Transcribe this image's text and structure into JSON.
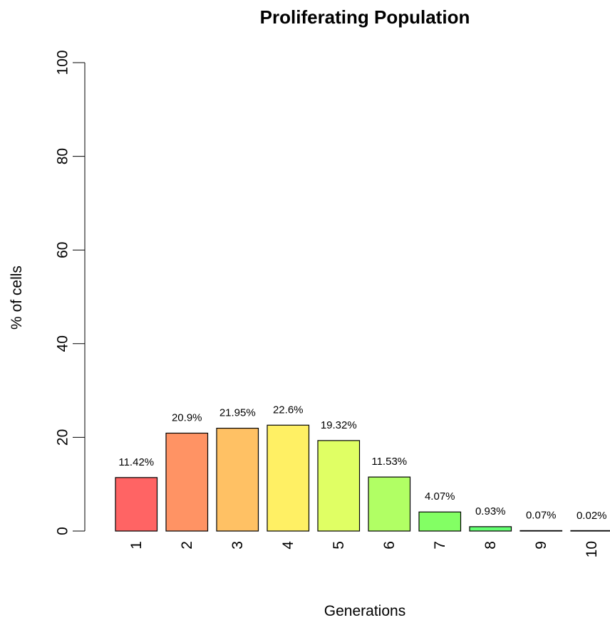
{
  "chart_data": {
    "type": "bar",
    "title": "Proliferating Population",
    "xlabel": "Generations",
    "ylabel": "% of cells",
    "categories": [
      "1",
      "2",
      "3",
      "4",
      "5",
      "6",
      "7",
      "8",
      "9",
      "10"
    ],
    "values": [
      11.42,
      20.9,
      21.95,
      22.6,
      19.32,
      11.53,
      4.07,
      0.93,
      0.07,
      0.02
    ],
    "data_labels": [
      "11.42%",
      "20.9%",
      "21.95%",
      "22.6%",
      "19.32%",
      "11.53%",
      "4.07%",
      "0.93%",
      "0.07%",
      "0.02%"
    ],
    "colors": [
      "#ff6464",
      "#ff9364",
      "#ffc164",
      "#fff064",
      "#e0ff64",
      "#b1ff64",
      "#83ff64",
      "#64ff72",
      "#64ffa0",
      "#64ffcf"
    ],
    "ylim": [
      0,
      100
    ],
    "yticks": [
      "0",
      "20",
      "40",
      "60",
      "80",
      "100"
    ],
    "grid": false,
    "legend": "none"
  }
}
